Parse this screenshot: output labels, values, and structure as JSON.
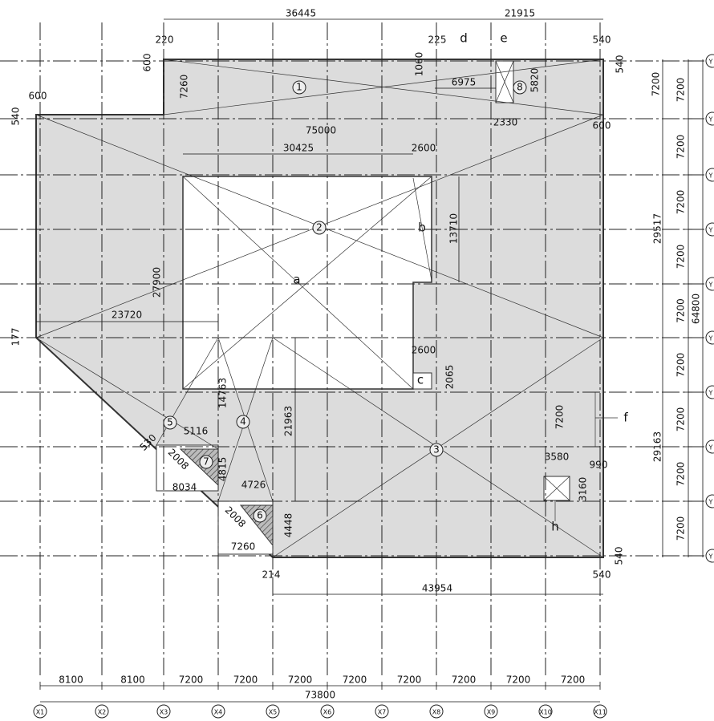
{
  "columns": [
    "X1",
    "X2",
    "X3",
    "X4",
    "X5",
    "X6",
    "X7",
    "X8",
    "X9",
    "X10",
    "X11"
  ],
  "rows": [
    "Y",
    "Y",
    "Y",
    "Y",
    "Y",
    "Y",
    "Y",
    "Y",
    "Y",
    "Y"
  ],
  "bottom_dims": [
    8100,
    8100,
    7200,
    7200,
    7200,
    7200,
    7200,
    7200,
    7200,
    7200
  ],
  "bottom_total": 73800,
  "right_dims": [
    7200,
    7200,
    7200,
    7200,
    7200,
    7200,
    7200,
    7200,
    7200
  ],
  "right_total": 64800,
  "labels": [
    36445,
    21915,
    220,
    225,
    "d",
    "e",
    540,
    600,
    1060,
    540,
    7260,
    "1",
    6975,
    "8",
    5820,
    7200,
    600,
    540,
    2330,
    75000,
    600,
    30425,
    2600,
    "2",
    "b",
    13710,
    27900,
    "a",
    29517,
    23720,
    177,
    2600,
    "c",
    2065,
    14763,
    21963,
    "5",
    "4",
    5116,
    7200,
    "f",
    "3",
    29163,
    530,
    2008,
    "7",
    4815,
    8034,
    3580,
    990,
    4726,
    3160,
    2008,
    "6",
    4448,
    "h",
    7260,
    214,
    540,
    540,
    43954
  ]
}
